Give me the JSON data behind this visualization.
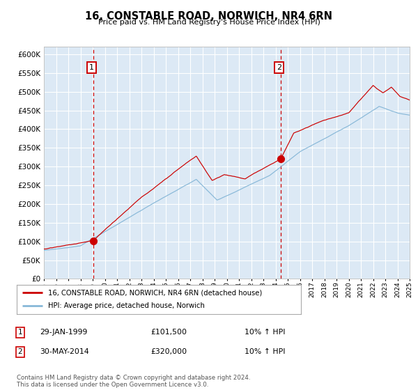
{
  "title": "16, CONSTABLE ROAD, NORWICH, NR4 6RN",
  "subtitle": "Price paid vs. HM Land Registry's House Price Index (HPI)",
  "background_color": "#dce9f5",
  "grid_color": "#ffffff",
  "red_line_color": "#cc0000",
  "blue_line_color": "#88b8d8",
  "fig_bg_color": "#ffffff",
  "legend_label_red": "16, CONSTABLE ROAD, NORWICH, NR4 6RN (detached house)",
  "legend_label_blue": "HPI: Average price, detached house, Norwich",
  "annotation1_date": "29-JAN-1999",
  "annotation1_price": "£101,500",
  "annotation1_hpi": "10% ↑ HPI",
  "annotation2_date": "30-MAY-2014",
  "annotation2_price": "£320,000",
  "annotation2_hpi": "10% ↑ HPI",
  "footer_text": "Contains HM Land Registry data © Crown copyright and database right 2024.\nThis data is licensed under the Open Government Licence v3.0.",
  "purchase1_year": 1999.08,
  "purchase1_value": 101500,
  "purchase2_year": 2014.42,
  "purchase2_value": 320000,
  "xlim": [
    1995,
    2025
  ],
  "ylim": [
    0,
    620000
  ],
  "yticks": [
    0,
    50000,
    100000,
    150000,
    200000,
    250000,
    300000,
    350000,
    400000,
    450000,
    500000,
    550000,
    600000
  ]
}
